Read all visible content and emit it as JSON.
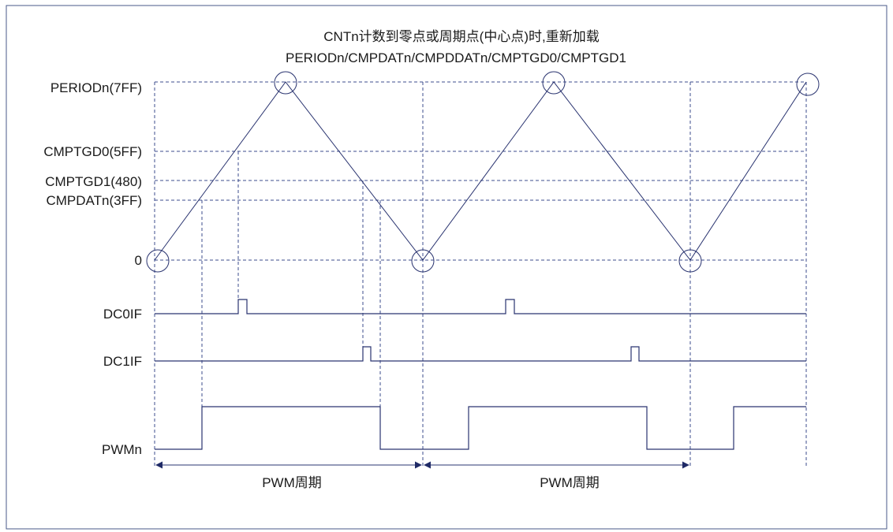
{
  "title": {
    "line1": "CNTn计数到零点或周期点(中心点)时,重新加载",
    "line2": "PERIODn/CMPDATn/CMPDDATn/CMPTGD0/CMPTGD1"
  },
  "levels": {
    "period": "PERIODn(7FF)",
    "cmptgd0": "CMPTGD0(5FF)",
    "cmptgd1": "CMPTGD1(480)",
    "cmpdat": "CMPDATn(3FF)",
    "zero": "0"
  },
  "signals": {
    "dc0if": "DC0IF",
    "dc1if": "DC1IF",
    "pwm": "PWMn"
  },
  "period_labels": {
    "first": "PWM周期",
    "second": "PWM周期"
  },
  "colors": {
    "line": "#2a3470",
    "grid": "#3d4d8c",
    "border": "#4a5a8a"
  }
}
